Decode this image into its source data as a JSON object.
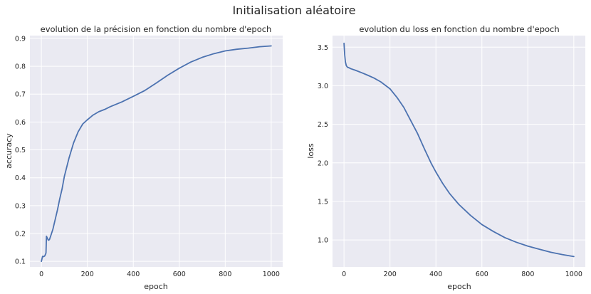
{
  "figure": {
    "suptitle": "Initialisation aléatoire"
  },
  "colors": {
    "background": "#eaeaf2",
    "grid": "#ffffff",
    "line": "#4c72b0"
  },
  "chart_data": [
    {
      "type": "line",
      "title": "evolution de la précision en fonction du nombre d'epoch",
      "xlabel": "epoch",
      "ylabel": "accuracy",
      "xlim": [
        -50,
        1050
      ],
      "ylim": [
        0.08,
        0.91
      ],
      "xticks": [
        0,
        200,
        400,
        600,
        800,
        1000
      ],
      "yticks": [
        0.1,
        0.2,
        0.3,
        0.4,
        0.5,
        0.6,
        0.7,
        0.8,
        0.9
      ],
      "grid": true,
      "series": [
        {
          "x": [
            0,
            5,
            10,
            15,
            20,
            22,
            25,
            30,
            35,
            40,
            50,
            60,
            70,
            80,
            90,
            100,
            120,
            140,
            160,
            180,
            200,
            225,
            250,
            275,
            300,
            350,
            400,
            450,
            500,
            550,
            600,
            650,
            700,
            750,
            800,
            850,
            900,
            950,
            1000
          ],
          "values": [
            0.1,
            0.118,
            0.117,
            0.12,
            0.13,
            0.19,
            0.185,
            0.176,
            0.178,
            0.19,
            0.215,
            0.25,
            0.285,
            0.325,
            0.36,
            0.405,
            0.47,
            0.525,
            0.565,
            0.593,
            0.608,
            0.625,
            0.637,
            0.645,
            0.655,
            0.672,
            0.692,
            0.713,
            0.74,
            0.768,
            0.793,
            0.815,
            0.832,
            0.845,
            0.855,
            0.861,
            0.865,
            0.87,
            0.873
          ]
        }
      ]
    },
    {
      "type": "line",
      "title": "evolution du loss en fonction du nombre d'epoch",
      "xlabel": "epoch",
      "ylabel": "loss",
      "xlim": [
        -50,
        1050
      ],
      "ylim": [
        0.65,
        3.65
      ],
      "xticks": [
        0,
        200,
        400,
        600,
        800,
        1000
      ],
      "yticks": [
        1.0,
        1.5,
        2.0,
        2.5,
        3.0,
        3.5
      ],
      "grid": true,
      "series": [
        {
          "x": [
            0,
            3,
            6,
            10,
            15,
            20,
            30,
            50,
            80,
            100,
            130,
            160,
            200,
            230,
            260,
            290,
            320,
            350,
            380,
            400,
            430,
            460,
            500,
            550,
            600,
            650,
            700,
            750,
            800,
            850,
            900,
            950,
            1000
          ],
          "values": [
            3.55,
            3.4,
            3.31,
            3.26,
            3.24,
            3.235,
            3.22,
            3.2,
            3.165,
            3.14,
            3.1,
            3.05,
            2.96,
            2.85,
            2.72,
            2.55,
            2.38,
            2.18,
            1.99,
            1.88,
            1.73,
            1.6,
            1.46,
            1.32,
            1.2,
            1.11,
            1.03,
            0.97,
            0.92,
            0.88,
            0.84,
            0.81,
            0.785
          ]
        }
      ]
    }
  ]
}
